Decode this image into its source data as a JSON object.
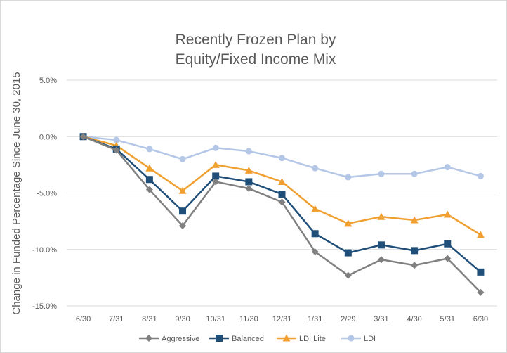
{
  "chart_data": {
    "type": "line",
    "title_lines": [
      "Recently Frozen Plan by",
      "Equity/Fixed Income Mix"
    ],
    "xlabel": "",
    "ylabel": "Change in Funded Percentage Since June 30, 2015",
    "categories": [
      "6/30",
      "7/31",
      "8/31",
      "9/30",
      "10/31",
      "11/30",
      "12/31",
      "1/31",
      "2/29",
      "3/31",
      "4/30",
      "5/31",
      "6/30"
    ],
    "ylim": [
      -15.0,
      5.0
    ],
    "yticks": [
      5.0,
      0.0,
      -5.0,
      -10.0,
      -15.0
    ],
    "ytick_labels": [
      "5.0%",
      "0.0%",
      "-5.0%",
      "-10.0%",
      "-15.0%"
    ],
    "grid": "horizontal",
    "legend_position": "bottom",
    "series": [
      {
        "name": "Aggressive",
        "color": "#808080",
        "marker": "diamond",
        "values": [
          0.0,
          -1.2,
          -4.7,
          -7.9,
          -4.0,
          -4.6,
          -5.8,
          -10.2,
          -12.3,
          -10.9,
          -11.4,
          -10.8,
          -13.8
        ]
      },
      {
        "name": "Balanced",
        "color": "#1f4e79",
        "marker": "square",
        "values": [
          0.0,
          -1.1,
          -3.8,
          -6.6,
          -3.5,
          -4.0,
          -5.1,
          -8.6,
          -10.3,
          -9.6,
          -10.1,
          -9.5,
          -12.0
        ]
      },
      {
        "name": "LDI Lite",
        "color": "#f0a030",
        "marker": "triangle",
        "values": [
          0.0,
          -0.8,
          -2.8,
          -4.8,
          -2.5,
          -3.0,
          -4.0,
          -6.4,
          -7.7,
          -7.1,
          -7.4,
          -6.9,
          -8.7
        ]
      },
      {
        "name": "LDI",
        "color": "#b4c7e7",
        "marker": "circle",
        "values": [
          0.0,
          -0.3,
          -1.1,
          -2.0,
          -1.0,
          -1.3,
          -1.9,
          -2.8,
          -3.6,
          -3.3,
          -3.3,
          -2.7,
          -3.5
        ]
      }
    ]
  }
}
